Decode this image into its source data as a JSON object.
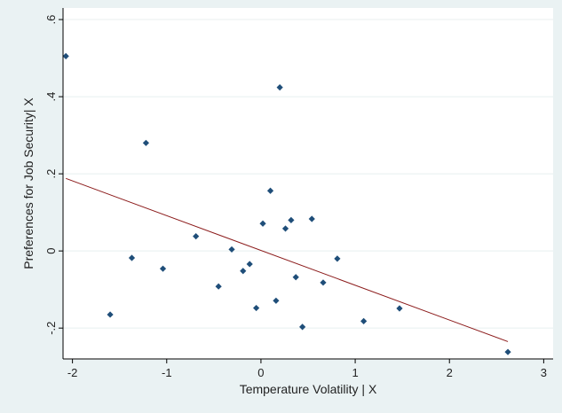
{
  "chart_data": {
    "type": "scatter",
    "title": "",
    "xlabel": "Temperature Volatility | X",
    "ylabel": "Preferences for Job Security| X",
    "xlim": [
      -2.1,
      3.1
    ],
    "ylim": [
      -0.28,
      0.63
    ],
    "x_ticks": [
      {
        "value": -2,
        "label": "-2"
      },
      {
        "value": -1,
        "label": "-1"
      },
      {
        "value": 0,
        "label": "0"
      },
      {
        "value": 1,
        "label": "1"
      },
      {
        "value": 2,
        "label": "2"
      },
      {
        "value": 3,
        "label": "3"
      }
    ],
    "y_ticks": [
      {
        "value": -0.2,
        "label": "-.2"
      },
      {
        "value": 0,
        "label": "0"
      },
      {
        "value": 0.2,
        "label": ".2"
      },
      {
        "value": 0.4,
        "label": ".4"
      },
      {
        "value": 0.6,
        "label": ".6"
      }
    ],
    "grid": true,
    "series": [
      {
        "type": "scatter",
        "color": "#1f4e79",
        "points": [
          {
            "x": -2.07,
            "y": 0.505
          },
          {
            "x": -1.6,
            "y": -0.165
          },
          {
            "x": -1.37,
            "y": -0.018
          },
          {
            "x": -1.22,
            "y": 0.28
          },
          {
            "x": -1.04,
            "y": -0.046
          },
          {
            "x": -0.69,
            "y": 0.038
          },
          {
            "x": -0.45,
            "y": -0.092
          },
          {
            "x": -0.31,
            "y": 0.004
          },
          {
            "x": -0.19,
            "y": -0.052
          },
          {
            "x": -0.12,
            "y": -0.034
          },
          {
            "x": -0.05,
            "y": -0.148
          },
          {
            "x": 0.02,
            "y": 0.071
          },
          {
            "x": 0.1,
            "y": 0.156
          },
          {
            "x": 0.16,
            "y": -0.129
          },
          {
            "x": 0.2,
            "y": 0.424
          },
          {
            "x": 0.26,
            "y": 0.058
          },
          {
            "x": 0.32,
            "y": 0.08
          },
          {
            "x": 0.37,
            "y": -0.068
          },
          {
            "x": 0.44,
            "y": -0.197
          },
          {
            "x": 0.54,
            "y": 0.083
          },
          {
            "x": 0.66,
            "y": -0.082
          },
          {
            "x": 0.81,
            "y": -0.02
          },
          {
            "x": 1.09,
            "y": -0.182
          },
          {
            "x": 1.47,
            "y": -0.149
          },
          {
            "x": 2.62,
            "y": -0.262
          }
        ]
      },
      {
        "type": "line",
        "color": "#8b1a1a",
        "points": [
          {
            "x": -2.07,
            "y": 0.188
          },
          {
            "x": 2.62,
            "y": -0.235
          }
        ]
      }
    ]
  }
}
